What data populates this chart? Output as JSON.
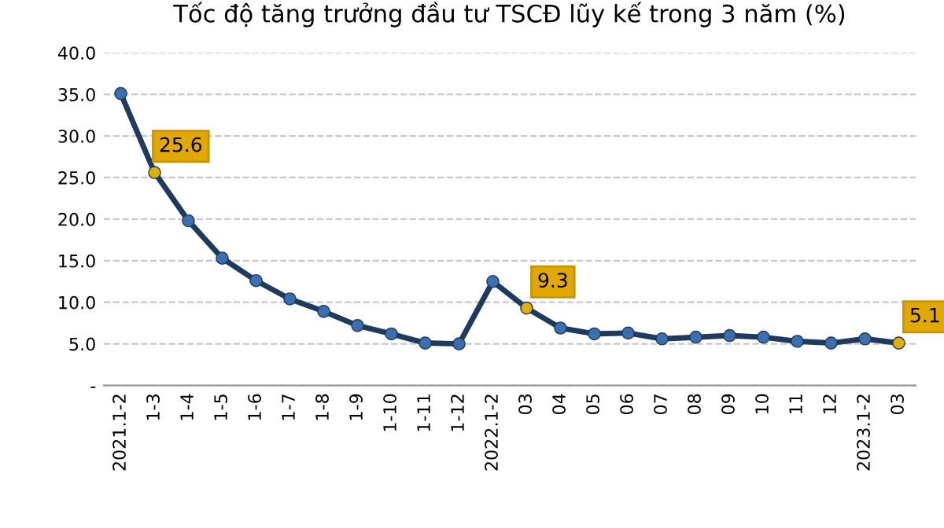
{
  "chart_data": {
    "type": "line",
    "title": "Tốc độ tăng trưởng đầu tư TSCĐ lũy kế trong 3 năm (%)",
    "categories": [
      "2021.1-2",
      "1-3",
      "1-4",
      "1-5",
      "1-6",
      "1-7",
      "1-8",
      "1-9",
      "1-10",
      "1-11",
      "1-12",
      "2022.1-2",
      "03",
      "04",
      "05",
      "06",
      "07",
      "08",
      "09",
      "10",
      "11",
      "12",
      "2023.1-2",
      "03"
    ],
    "series": [
      {
        "color": "#1f3a5f",
        "colors": [
          "#3a6fb0",
          "#e0b000",
          "#3a6fb0",
          "#3a6fb0",
          "#3a6fb0",
          "#3a6fb0",
          "#3a6fb0",
          "#3a6fb0",
          "#3a6fb0",
          "#3a6fb0",
          "#3a6fb0",
          "#3a6fb0",
          "#e0b000",
          "#3a6fb0",
          "#3a6fb0",
          "#3a6fb0",
          "#3a6fb0",
          "#3a6fb0",
          "#3a6fb0",
          "#3a6fb0",
          "#3a6fb0",
          "#3a6fb0",
          "#3a6fb0",
          "#e0b000"
        ],
        "values": [
          35.1,
          25.6,
          19.8,
          15.3,
          12.6,
          10.4,
          8.9,
          7.2,
          6.2,
          5.1,
          5.0,
          12.5,
          9.3,
          6.9,
          6.2,
          6.3,
          5.6,
          5.8,
          6.0,
          5.8,
          5.3,
          5.1,
          5.6,
          5.1
        ],
        "value_labels": [
          null,
          "25.6",
          null,
          null,
          null,
          null,
          null,
          null,
          null,
          null,
          null,
          null,
          "9.3",
          null,
          null,
          null,
          null,
          null,
          null,
          null,
          null,
          null,
          null,
          "5.1"
        ]
      }
    ],
    "ylim": [
      0,
      40
    ],
    "yticks": [
      {
        "value": 0,
        "label": "-"
      },
      {
        "value": 5,
        "label": "5.0"
      },
      {
        "value": 10,
        "label": "10.0"
      },
      {
        "value": 15,
        "label": "15.0"
      },
      {
        "value": 20,
        "label": "20.0"
      },
      {
        "value": 25,
        "label": "25.0"
      },
      {
        "value": 30,
        "label": "30.0"
      },
      {
        "value": 35,
        "label": "35.0"
      },
      {
        "value": 40,
        "label": "40.0"
      }
    ],
    "grid": "y",
    "marker": "circle",
    "line_style": "solid",
    "legend": false
  }
}
